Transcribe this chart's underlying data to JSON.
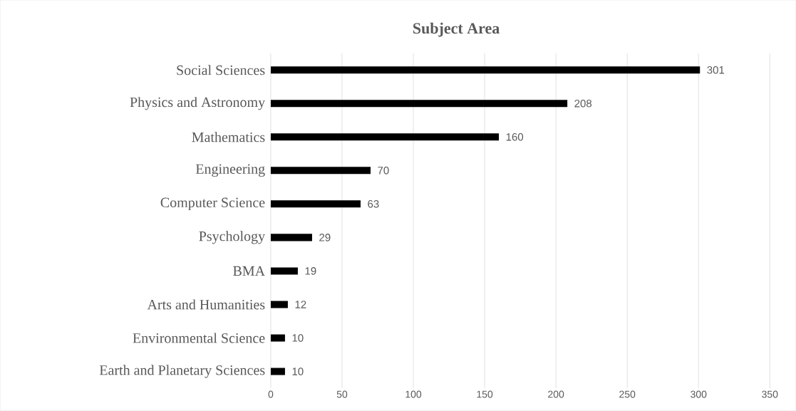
{
  "chart_data": {
    "type": "bar",
    "orientation": "horizontal",
    "title": "Subject Area",
    "categories": [
      "Social Sciences",
      "Physics and Astronomy",
      "Mathematics",
      "Engineering",
      "Computer Science",
      "Psychology",
      "BMA",
      "Arts and Humanities",
      "Environmental Science",
      "Earth and Planetary Sciences"
    ],
    "values": [
      301,
      208,
      160,
      70,
      63,
      29,
      19,
      12,
      10,
      10
    ],
    "color": "#000000",
    "xlim": [
      0,
      350
    ],
    "xticks": [
      0,
      50,
      100,
      150,
      200,
      250,
      300,
      350
    ],
    "grid": "x",
    "data_labels": true
  }
}
